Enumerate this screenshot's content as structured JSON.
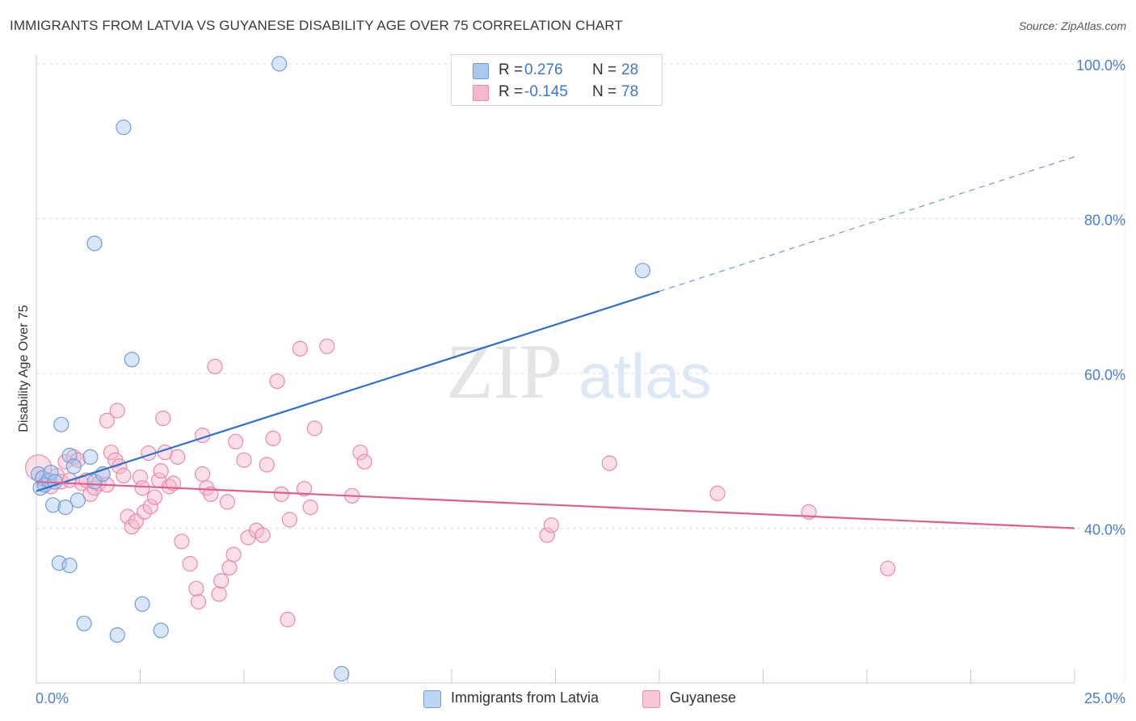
{
  "header": {
    "title": "IMMIGRANTS FROM LATVIA VS GUYANESE DISABILITY AGE OVER 75 CORRELATION CHART",
    "source": "Source: ZipAtlas.com"
  },
  "watermark": {
    "zip": "ZIP",
    "atlas": "atlas"
  },
  "legend": {
    "rows": [
      {
        "r_label": "R =",
        "r_value": "0.276",
        "n_label": "N =",
        "n_value": "28",
        "color": "#a9c8f0",
        "border": "#6f9fd8"
      },
      {
        "r_label": "R =",
        "r_value": "-0.145",
        "n_label": "N =",
        "n_value": "78",
        "color": "#f7b8cc",
        "border": "#e98aa8"
      }
    ]
  },
  "bottom_legend": {
    "items": [
      {
        "label": "Immigrants from Latvia",
        "color": "#a9c8f0",
        "border": "#6f9fd8"
      },
      {
        "label": "Guyanese",
        "color": "#f7b8cc",
        "border": "#e98aa8"
      }
    ]
  },
  "chart_data": {
    "type": "scatter",
    "title": "IMMIGRANTS FROM LATVIA VS GUYANESE DISABILITY AGE OVER 75 CORRELATION CHART",
    "xlabel": "",
    "ylabel": "Disability Age Over 75",
    "xlim": [
      0,
      25
    ],
    "ylim": [
      20,
      100
    ],
    "y_ticks": [
      40,
      60,
      80,
      100
    ],
    "y_tick_labels": [
      "40.0%",
      "60.0%",
      "80.0%",
      "100.0%"
    ],
    "x_tick_labels": [
      "0.0%",
      "25.0%"
    ],
    "x_minor_ticks": [
      2.5,
      5.0,
      7.5,
      10.0,
      12.5,
      15.0,
      17.5,
      20.0,
      22.5,
      25.0
    ],
    "series": [
      {
        "name": "Immigrants from Latvia",
        "color": "#a9c8f0",
        "stroke": "#6f9fd8",
        "line_color": "#2f6fcc",
        "trend": {
          "x0": 0,
          "y0": 44.8,
          "x1": 15.0,
          "y1": 70.6,
          "x_dash_end": 25.0,
          "y_dash_end": 88.0
        },
        "points": [
          [
            0.05,
            47.0
          ],
          [
            0.1,
            45.2
          ],
          [
            0.15,
            46.5
          ],
          [
            0.2,
            45.6
          ],
          [
            0.3,
            46.2
          ],
          [
            0.35,
            47.2
          ],
          [
            0.4,
            43.0
          ],
          [
            0.45,
            46.0
          ],
          [
            0.6,
            53.4
          ],
          [
            0.7,
            42.7
          ],
          [
            0.8,
            49.4
          ],
          [
            0.9,
            48.0
          ],
          [
            1.0,
            43.6
          ],
          [
            1.3,
            49.2
          ],
          [
            1.4,
            46.0
          ],
          [
            1.6,
            47.0
          ],
          [
            1.4,
            76.8
          ],
          [
            2.1,
            91.8
          ],
          [
            2.3,
            61.8
          ],
          [
            0.55,
            35.5
          ],
          [
            0.8,
            35.2
          ],
          [
            1.15,
            27.7
          ],
          [
            1.95,
            26.2
          ],
          [
            2.55,
            30.2
          ],
          [
            3.0,
            26.8
          ],
          [
            5.85,
            100.0
          ],
          [
            14.6,
            73.3
          ],
          [
            7.35,
            21.2
          ]
        ]
      },
      {
        "name": "Guyanese",
        "color": "#f7b8cc",
        "stroke": "#e98aa8",
        "line_color": "#e0608a",
        "trend": {
          "x0": 0,
          "y0": 46.0,
          "x1": 25.0,
          "y1": 40.0
        },
        "points": [
          [
            0.05,
            47.8
          ],
          [
            0.15,
            46.4
          ],
          [
            0.25,
            46.0
          ],
          [
            0.35,
            45.4
          ],
          [
            0.5,
            46.8
          ],
          [
            0.6,
            46.0
          ],
          [
            0.7,
            48.6
          ],
          [
            0.8,
            46.2
          ],
          [
            0.9,
            49.2
          ],
          [
            1.0,
            48.8
          ],
          [
            1.1,
            45.8
          ],
          [
            1.2,
            46.2
          ],
          [
            1.3,
            44.4
          ],
          [
            1.4,
            45.2
          ],
          [
            1.5,
            45.8
          ],
          [
            1.6,
            47.0
          ],
          [
            1.7,
            45.6
          ],
          [
            1.8,
            49.8
          ],
          [
            1.9,
            48.8
          ],
          [
            2.0,
            48.0
          ],
          [
            2.1,
            46.8
          ],
          [
            1.7,
            53.9
          ],
          [
            1.95,
            55.2
          ],
          [
            2.2,
            41.5
          ],
          [
            2.3,
            40.2
          ],
          [
            2.4,
            40.9
          ],
          [
            2.5,
            46.6
          ],
          [
            2.6,
            42.1
          ],
          [
            2.7,
            49.7
          ],
          [
            2.75,
            42.8
          ],
          [
            2.85,
            44.0
          ],
          [
            2.95,
            46.2
          ],
          [
            3.0,
            47.4
          ],
          [
            3.05,
            54.2
          ],
          [
            3.1,
            49.8
          ],
          [
            3.2,
            45.4
          ],
          [
            3.3,
            45.8
          ],
          [
            3.4,
            49.2
          ],
          [
            3.5,
            38.3
          ],
          [
            3.7,
            35.4
          ],
          [
            3.9,
            30.5
          ],
          [
            3.85,
            32.2
          ],
          [
            4.0,
            52.0
          ],
          [
            4.1,
            45.2
          ],
          [
            4.2,
            44.4
          ],
          [
            4.3,
            60.9
          ],
          [
            4.4,
            31.5
          ],
          [
            4.45,
            33.2
          ],
          [
            4.6,
            43.4
          ],
          [
            4.65,
            34.9
          ],
          [
            4.75,
            36.6
          ],
          [
            4.8,
            51.2
          ],
          [
            5.0,
            48.8
          ],
          [
            5.1,
            38.8
          ],
          [
            5.3,
            39.7
          ],
          [
            5.45,
            39.1
          ],
          [
            5.55,
            48.2
          ],
          [
            5.7,
            51.6
          ],
          [
            5.8,
            59.0
          ],
          [
            5.9,
            44.4
          ],
          [
            6.05,
            28.2
          ],
          [
            6.1,
            41.1
          ],
          [
            6.35,
            63.2
          ],
          [
            6.45,
            45.1
          ],
          [
            6.6,
            42.7
          ],
          [
            6.7,
            52.9
          ],
          [
            7.0,
            63.5
          ],
          [
            7.6,
            44.2
          ],
          [
            7.8,
            49.8
          ],
          [
            7.9,
            48.6
          ],
          [
            12.3,
            39.1
          ],
          [
            12.4,
            40.4
          ],
          [
            13.8,
            48.4
          ],
          [
            16.4,
            44.5
          ],
          [
            18.6,
            42.1
          ],
          [
            20.5,
            34.8
          ],
          [
            4.0,
            47.0
          ],
          [
            2.55,
            45.2
          ]
        ]
      }
    ]
  }
}
